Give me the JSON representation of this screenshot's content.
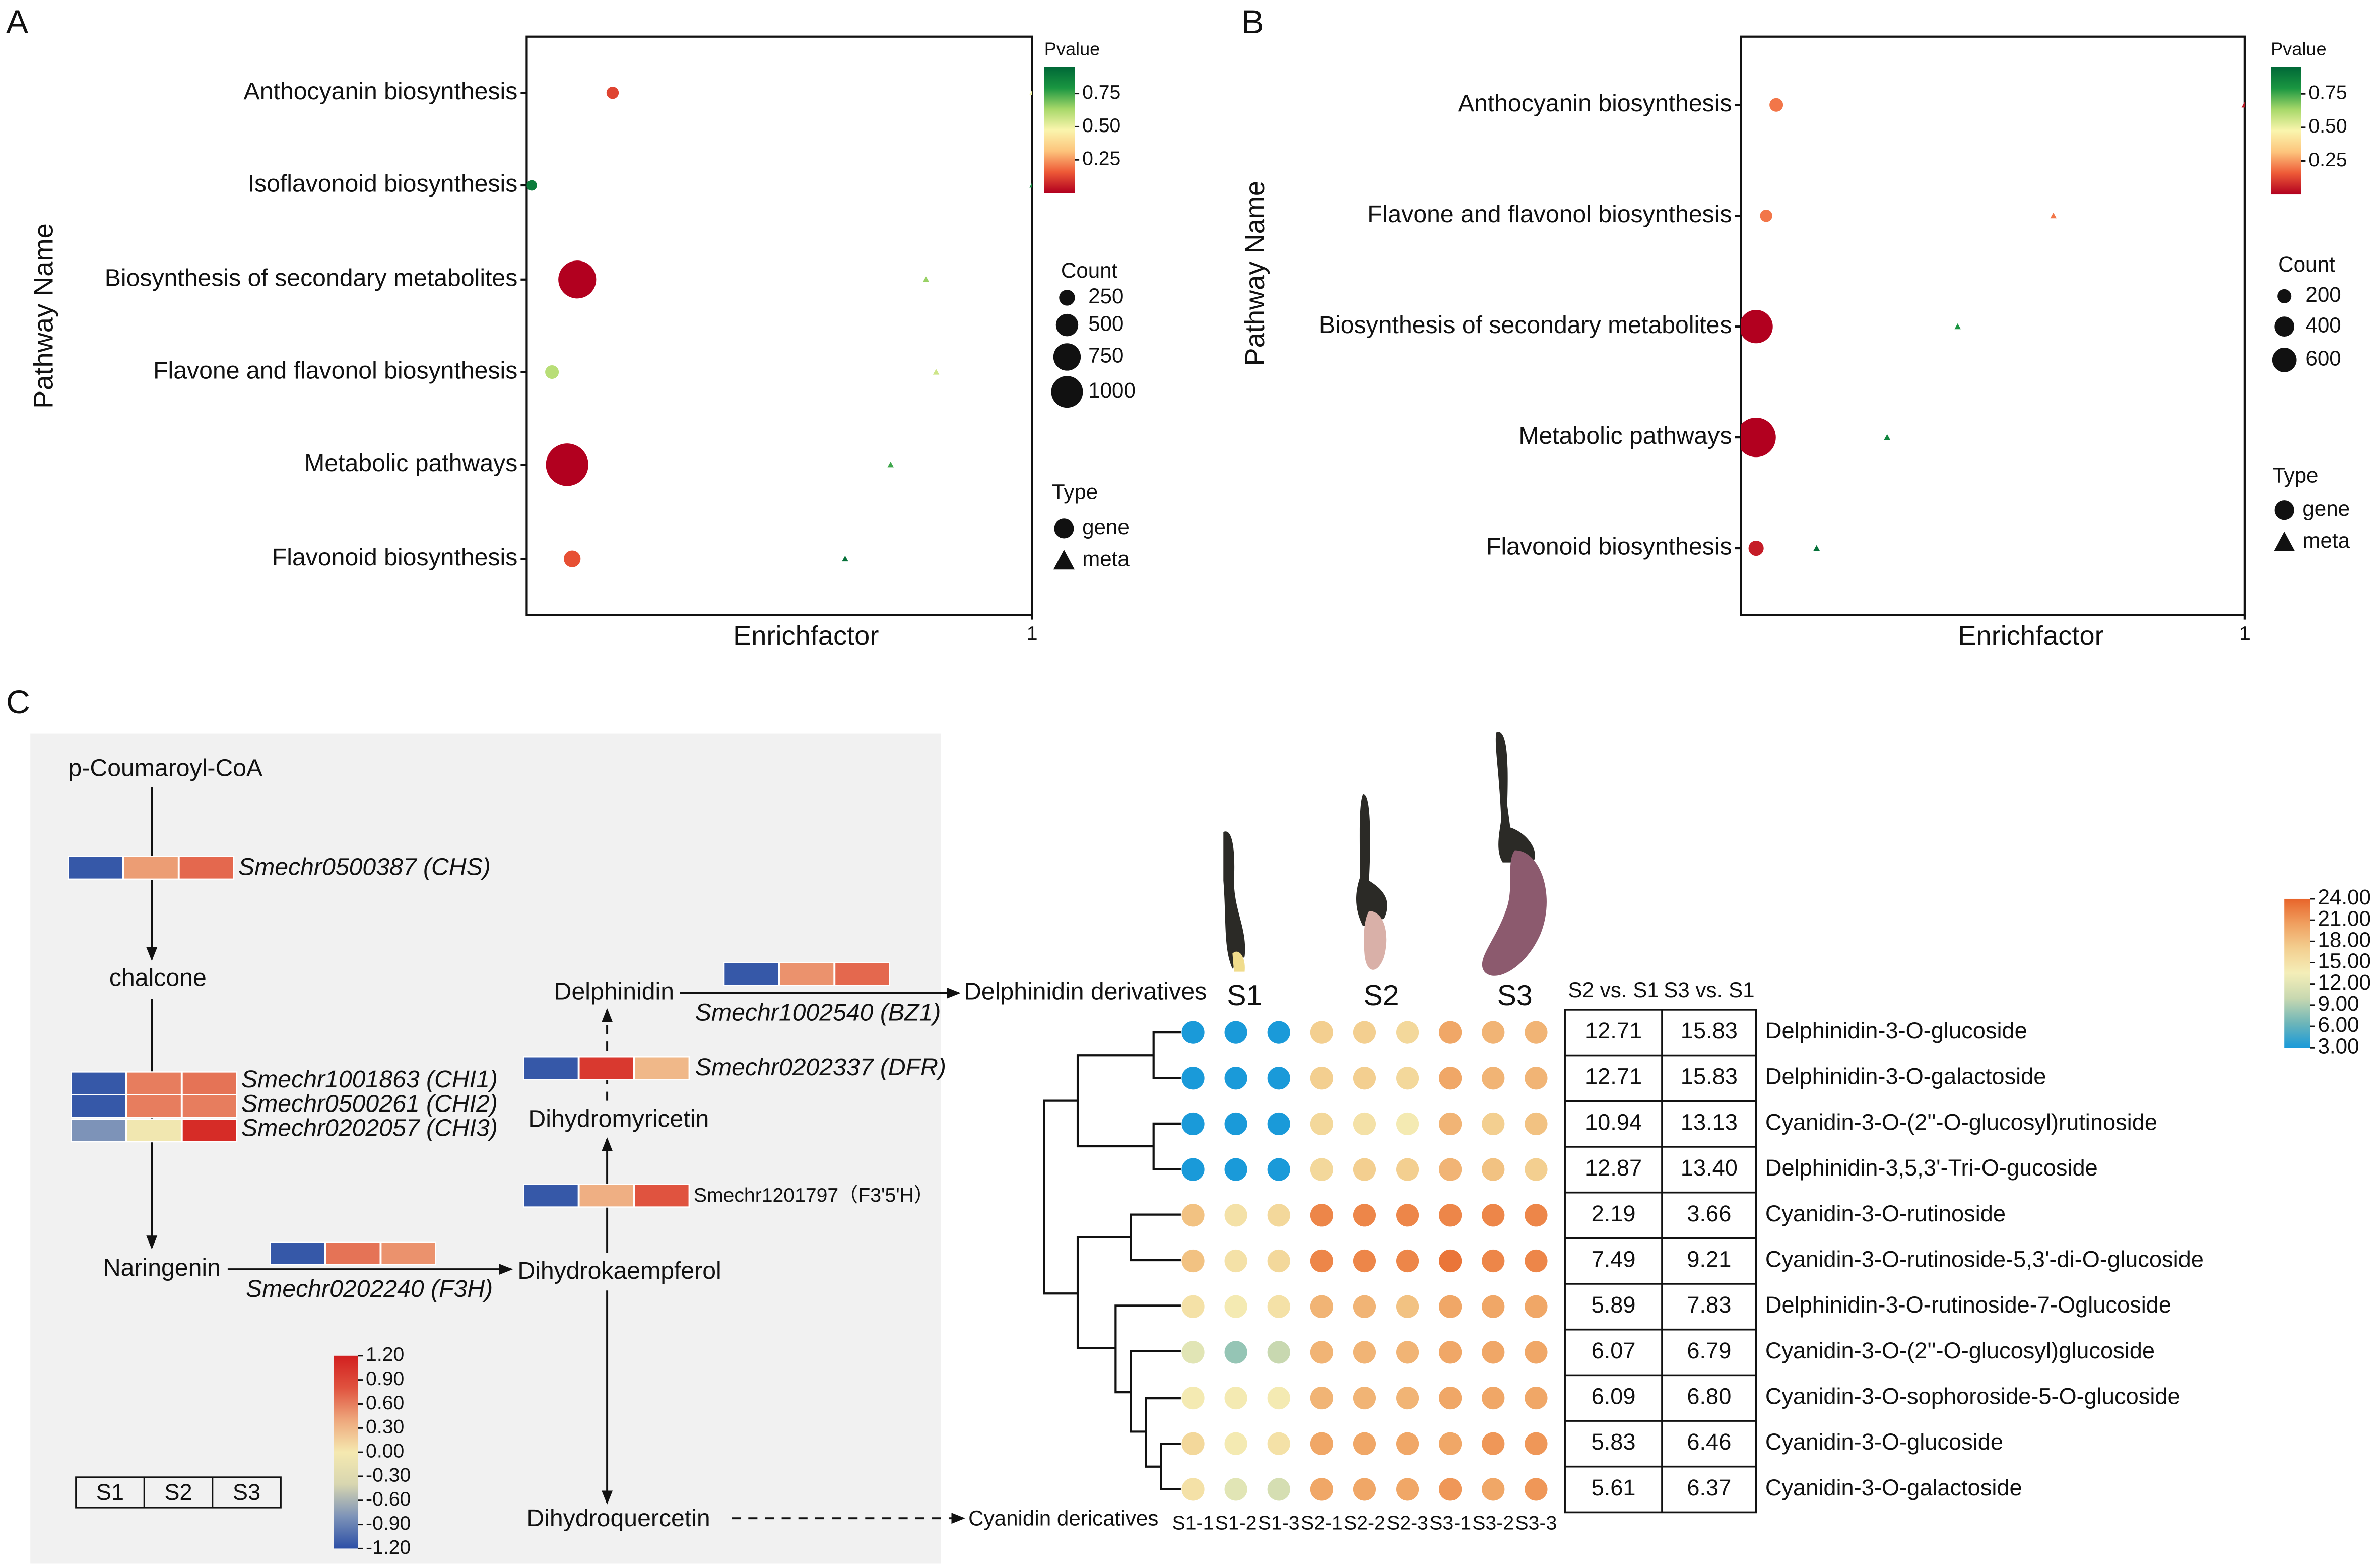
{
  "figure": {
    "panel_labels": [
      "A",
      "B",
      "C"
    ]
  },
  "chart_data": [
    {
      "type": "scatter",
      "ylabel": "Pathway Name",
      "xlabel": "Enrichfactor",
      "categories": [
        "Anthocyanin biosynthesis",
        "Isoflavonoid biosynthesis",
        "Biosynthesis of secondary metabolites",
        "Flavone and flavonol biosynthesis",
        "Metabolic pathways",
        "Flavonoid biosynthesis"
      ],
      "xlim": [
        0,
        1
      ],
      "xticks": [
        1
      ],
      "color_title": "Pvalue",
      "color_lim": [
        0,
        0.95
      ],
      "color_ticks": [
        0.75,
        {
          "value": 0.5,
          "label": "0.50"
        },
        0.25
      ],
      "colormap": [
        "#b2001f",
        "#ee5a37",
        "#fdc47c",
        "#faf5ad",
        "#a7d869",
        "#1a9641",
        "#006837"
      ],
      "size_title": "Count",
      "size_ticks": [
        250,
        500,
        750,
        1000
      ],
      "shape_title": "Type",
      "series": [
        {
          "name": "gene",
          "marker": "circle",
          "x": [
            0.17,
            0.01,
            0.1,
            0.05,
            0.08,
            0.09
          ],
          "count": [
            150,
            110,
            1430,
            185,
            1800,
            280
          ],
          "pvalue": [
            0.12,
            0.88,
            0.0,
            0.6,
            0.0,
            0.14
          ]
        },
        {
          "name": "meta",
          "marker": "triangle",
          "x": [
            1.0,
            1.0,
            0.79,
            0.81,
            0.72,
            0.63
          ],
          "count": [
            30,
            30,
            40,
            40,
            40,
            40
          ],
          "pvalue": [
            0.5,
            0.85,
            0.65,
            0.56,
            0.75,
            0.92
          ]
        }
      ]
    },
    {
      "type": "scatter",
      "ylabel": "Pathway Name",
      "xlabel": "Enrichfactor",
      "categories": [
        "Anthocyanin biosynthesis",
        "Flavone and flavonol biosynthesis",
        "Biosynthesis of secondary metabolites",
        "Metabolic pathways",
        "Flavonoid biosynthesis"
      ],
      "xlim": [
        0,
        1
      ],
      "xticks": [
        1
      ],
      "color_title": "Pvalue",
      "color_lim": [
        0,
        0.95
      ],
      "color_ticks": [
        0.75,
        {
          "value": 0.5,
          "label": "0.50"
        },
        0.25
      ],
      "colormap": [
        "#b2001f",
        "#ee5a37",
        "#fdc47c",
        "#faf5ad",
        "#a7d869",
        "#1a9641",
        "#006837"
      ],
      "size_title": "Count",
      "size_ticks": [
        200,
        400,
        600
      ],
      "shape_title": "Type",
      "series": [
        {
          "name": "gene",
          "marker": "circle",
          "x": [
            0.07,
            0.05,
            0.03,
            0.03,
            0.03
          ],
          "count": [
            185,
            150,
            1110,
            1550,
            230
          ],
          "pvalue": [
            0.2,
            0.2,
            0.0,
            0.0,
            0.05
          ]
        },
        {
          "name": "meta",
          "marker": "triangle",
          "x": [
            1.0,
            0.62,
            0.43,
            0.29,
            0.15
          ],
          "count": [
            40,
            40,
            40,
            40,
            40
          ],
          "pvalue": [
            0.04,
            0.2,
            0.8,
            0.85,
            0.92
          ]
        }
      ]
    }
  ],
  "pathway": {
    "compounds": [
      "p-Coumaroyl-CoA",
      "chalcone",
      "Naringenin",
      "Dihydrokaempferol",
      "Dihydroquercetin",
      "Cyanidin dericatives",
      "Dihydromyricetin",
      "Delphinidin",
      "Delphinidin derivatives"
    ],
    "genes": [
      {
        "label": "Smechr0500387 (CHS)",
        "values": [
          -1.15,
          0.45,
          0.7
        ]
      },
      {
        "label": "Smechr1001863 (CHI1)",
        "values": [
          -1.15,
          0.6,
          0.65
        ]
      },
      {
        "label": "Smechr0500261 (CHI2)",
        "values": [
          -1.15,
          0.6,
          0.6
        ]
      },
      {
        "label": "Smechr0202057 (CHI3)",
        "values": [
          -0.8,
          -0.05,
          1.1
        ]
      },
      {
        "label": "Smechr0202240 (F3H)",
        "values": [
          -1.15,
          0.65,
          0.5
        ]
      },
      {
        "label": "Smechr1201797（F3'5'H）",
        "values": [
          -1.15,
          0.35,
          0.8
        ]
      },
      {
        "label": "Smechr0202337 (DFR)",
        "values": [
          -1.15,
          1.0,
          0.3
        ]
      },
      {
        "label": "Smechr1002540 (BZ1)",
        "values": [
          -1.15,
          0.5,
          0.7
        ]
      }
    ],
    "samples": [
      "S1",
      "S2",
      "S3"
    ],
    "scale_lim": [
      -1.2,
      1.2
    ],
    "scale_ticks": [
      {
        "value": 1.2,
        "label": "1.20"
      },
      {
        "value": 0.9,
        "label": "0.90"
      },
      {
        "value": 0.6,
        "label": "0.60"
      },
      {
        "value": 0.3,
        "label": "0.30"
      },
      {
        "value": 0,
        "label": "0.00"
      },
      {
        "value": -0.3,
        "label": "-0.30"
      },
      {
        "value": -0.6,
        "label": "-0.60"
      },
      {
        "value": -0.9,
        "label": "-0.90"
      },
      {
        "value": -1.2,
        "label": "-1.20"
      }
    ],
    "colormap": [
      "#2c4fa6",
      "#7d93b8",
      "#d8d6b0",
      "#f5e9b0",
      "#eea77c",
      "#e0533f",
      "#d21f1f"
    ]
  },
  "heatmap": {
    "stages": [
      "S1",
      "S2",
      "S3"
    ],
    "columns": [
      "S1-1",
      "S1-2",
      "S1-3",
      "S2-1",
      "S2-2",
      "S2-3",
      "S3-1",
      "S3-2",
      "S3-3"
    ],
    "rows": [
      "Delphinidin-3-O-glucoside",
      "Delphinidin-3-O-galactoside",
      "Cyanidin-3-O-(2''-O-glucosyl)rutinoside",
      "Delphinidin-3,5,3'-Tri-O-gucoside",
      "Cyanidin-3-O-rutinoside",
      "Cyanidin-3-O-rutinoside-5,3'-di-O-glucoside",
      "Delphinidin-3-O-rutinoside-7-Oglucoside",
      "Cyanidin-3-O-(2''-O-glucosyl)glucoside",
      "Cyanidin-3-O-sophoroside-5-O-glucoside",
      "Cyanidin-3-O-glucoside",
      "Cyanidin-3-O-galactoside"
    ],
    "values": [
      [
        3,
        3,
        3,
        17,
        17,
        16,
        20,
        19,
        19
      ],
      [
        3,
        3,
        3,
        17,
        17,
        16,
        20,
        19,
        19
      ],
      [
        3,
        3,
        3,
        16,
        15,
        14,
        19,
        17,
        18
      ],
      [
        3,
        3,
        3,
        16,
        17,
        17,
        19,
        18,
        17
      ],
      [
        18,
        15,
        16,
        22,
        22,
        22,
        22,
        22,
        22
      ],
      [
        18,
        15,
        16,
        22,
        22,
        22,
        23,
        22,
        22
      ],
      [
        15,
        14,
        15,
        19,
        19,
        18,
        20,
        20,
        20
      ],
      [
        12,
        8,
        10,
        19,
        19,
        19,
        20,
        20,
        20
      ],
      [
        14,
        14,
        14,
        19,
        19,
        19,
        20,
        20,
        20
      ],
      [
        16,
        14,
        15,
        20,
        20,
        20,
        20,
        21,
        21
      ],
      [
        15,
        12,
        11,
        20,
        20,
        20,
        21,
        20,
        21
      ]
    ],
    "scale_lim": [
      3,
      24
    ],
    "scale_ticks": [
      {
        "value": 24,
        "label": "24.00"
      },
      {
        "value": 21,
        "label": "21.00"
      },
      {
        "value": 18,
        "label": "18.00"
      },
      {
        "value": 15,
        "label": "15.00"
      },
      {
        "value": 12,
        "label": "12.00"
      },
      {
        "value": 9,
        "label": "9.00"
      },
      {
        "value": 6,
        "label": "6.00"
      },
      {
        "value": 3,
        "label": "3.00"
      }
    ],
    "colormap": [
      "#1a9ad9",
      "#6fb6b8",
      "#c8d8b0",
      "#f4eeb8",
      "#f3cf90",
      "#f0a060",
      "#e8642a"
    ],
    "table": {
      "headers": [
        "S2 vs. S1",
        "S3 vs. S1"
      ],
      "rows": [
        [
          "12.71",
          "15.83"
        ],
        [
          "12.71",
          "15.83"
        ],
        [
          "10.94",
          "13.13"
        ],
        [
          "12.87",
          "13.40"
        ],
        [
          "2.19",
          "3.66"
        ],
        [
          "7.49",
          "9.21"
        ],
        [
          "5.89",
          "7.83"
        ],
        [
          "6.07",
          "6.79"
        ],
        [
          "6.09",
          "6.80"
        ],
        [
          "5.83",
          "6.46"
        ],
        [
          "5.61",
          "6.37"
        ]
      ]
    }
  }
}
